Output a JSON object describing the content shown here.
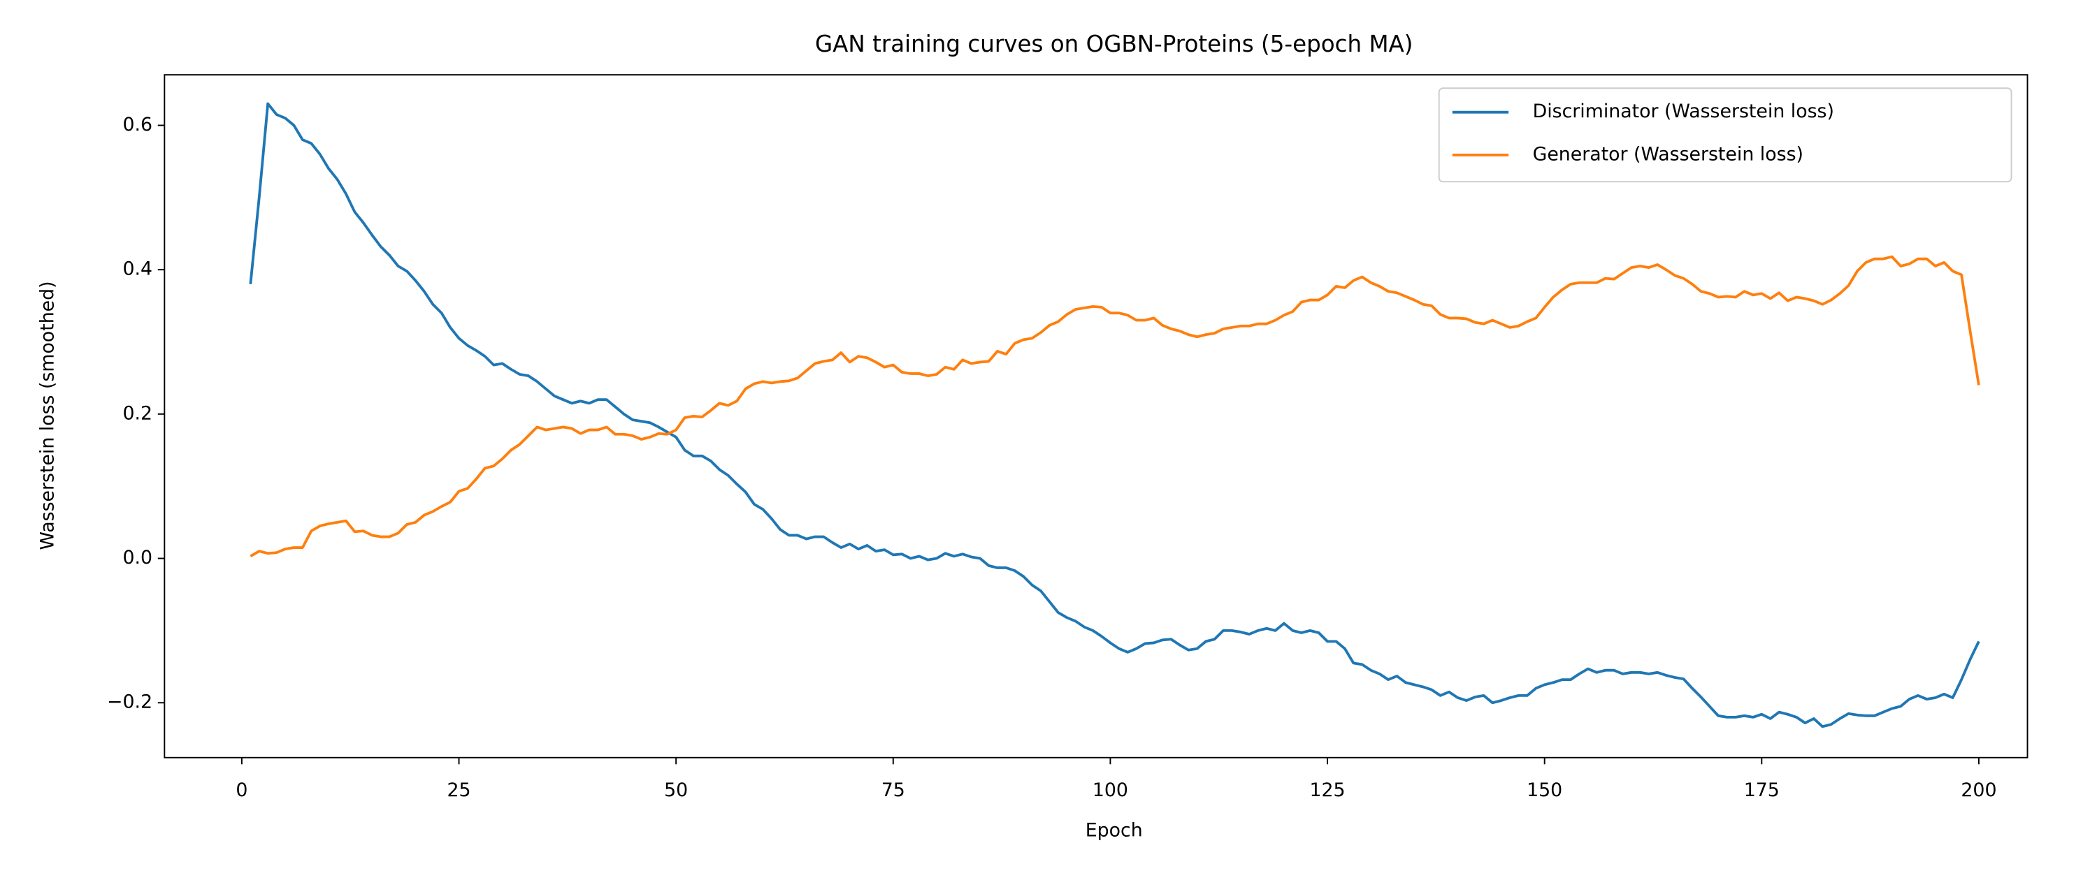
{
  "chart_data": {
    "type": "line",
    "title": "GAN training curves on OGBN-Proteins (5-epoch MA)",
    "x_label": "Epoch",
    "y_label": "Wasserstein loss (smoothed)",
    "x": [
      1,
      2,
      3,
      4,
      5,
      6,
      7,
      8,
      9,
      10,
      11,
      12,
      13,
      14,
      15,
      16,
      17,
      18,
      19,
      20,
      21,
      22,
      23,
      24,
      25,
      26,
      27,
      28,
      29,
      30,
      31,
      32,
      33,
      34,
      35,
      36,
      37,
      38,
      39,
      40,
      41,
      42,
      43,
      44,
      45,
      46,
      47,
      48,
      49,
      50,
      51,
      52,
      53,
      54,
      55,
      56,
      57,
      58,
      59,
      60,
      61,
      62,
      63,
      64,
      65,
      66,
      67,
      68,
      69,
      70,
      71,
      72,
      73,
      74,
      75,
      76,
      77,
      78,
      79,
      80,
      81,
      82,
      83,
      84,
      85,
      86,
      87,
      88,
      89,
      90,
      91,
      92,
      93,
      94,
      95,
      96,
      97,
      98,
      99,
      100,
      101,
      102,
      103,
      104,
      105,
      106,
      107,
      108,
      109,
      110,
      111,
      112,
      113,
      114,
      115,
      116,
      117,
      118,
      119,
      120,
      121,
      122,
      123,
      124,
      125,
      126,
      127,
      128,
      129,
      130,
      131,
      132,
      133,
      134,
      135,
      136,
      137,
      138,
      139,
      140,
      141,
      142,
      143,
      144,
      145,
      146,
      147,
      148,
      149,
      150,
      151,
      152,
      153,
      154,
      155,
      156,
      157,
      158,
      159,
      160,
      161,
      162,
      163,
      164,
      165,
      166,
      167,
      168,
      169,
      170,
      171,
      172,
      173,
      174,
      175,
      176,
      177,
      178,
      179,
      180,
      181,
      182,
      183,
      184,
      185,
      186,
      187,
      188,
      189,
      190,
      191,
      192,
      193,
      194,
      195,
      196,
      197,
      198,
      199,
      200
    ],
    "series": [
      {
        "name": "Discriminator (Wasserstein loss)",
        "color": "#1f77b4",
        "values": [
          0.38,
          0.5,
          0.63,
          0.615,
          0.61,
          0.6,
          0.58,
          0.575,
          0.56,
          0.54,
          0.525,
          0.505,
          0.48,
          0.465,
          0.448,
          0.432,
          0.42,
          0.405,
          0.398,
          0.385,
          0.37,
          0.352,
          0.34,
          0.32,
          0.305,
          0.295,
          0.288,
          0.28,
          0.268,
          0.27,
          0.262,
          0.255,
          0.253,
          0.245,
          0.235,
          0.225,
          0.22,
          0.215,
          0.218,
          0.215,
          0.22,
          0.22,
          0.21,
          0.2,
          0.192,
          0.19,
          0.188,
          0.182,
          0.175,
          0.168,
          0.15,
          0.142,
          0.142,
          0.135,
          0.123,
          0.115,
          0.103,
          0.092,
          0.075,
          0.068,
          0.055,
          0.04,
          0.032,
          0.032,
          0.027,
          0.03,
          0.03,
          0.022,
          0.015,
          0.02,
          0.013,
          0.018,
          0.01,
          0.012,
          0.005,
          0.006,
          0.0,
          0.003,
          -0.002,
          0.0,
          0.007,
          0.003,
          0.006,
          0.002,
          0.0,
          -0.01,
          -0.013,
          -0.013,
          -0.017,
          -0.025,
          -0.037,
          -0.045,
          -0.06,
          -0.075,
          -0.082,
          -0.087,
          -0.095,
          -0.1,
          -0.108,
          -0.117,
          -0.125,
          -0.13,
          -0.125,
          -0.118,
          -0.117,
          -0.113,
          -0.112,
          -0.12,
          -0.127,
          -0.125,
          -0.115,
          -0.112,
          -0.1,
          -0.1,
          -0.102,
          -0.105,
          -0.1,
          -0.097,
          -0.1,
          -0.09,
          -0.1,
          -0.103,
          -0.1,
          -0.103,
          -0.115,
          -0.115,
          -0.125,
          -0.145,
          -0.147,
          -0.155,
          -0.16,
          -0.168,
          -0.163,
          -0.172,
          -0.175,
          -0.178,
          -0.182,
          -0.19,
          -0.185,
          -0.193,
          -0.197,
          -0.192,
          -0.19,
          -0.2,
          -0.197,
          -0.193,
          -0.19,
          -0.19,
          -0.18,
          -0.175,
          -0.172,
          -0.168,
          -0.168,
          -0.16,
          -0.153,
          -0.158,
          -0.155,
          -0.155,
          -0.16,
          -0.158,
          -0.158,
          -0.16,
          -0.158,
          -0.162,
          -0.165,
          -0.167,
          -0.18,
          -0.192,
          -0.205,
          -0.218,
          -0.22,
          -0.22,
          -0.218,
          -0.22,
          -0.216,
          -0.222,
          -0.213,
          -0.216,
          -0.22,
          -0.228,
          -0.222,
          -0.233,
          -0.23,
          -0.222,
          -0.215,
          -0.217,
          -0.218,
          -0.218,
          -0.213,
          -0.208,
          -0.205,
          -0.195,
          -0.19,
          -0.195,
          -0.193,
          -0.188,
          -0.193,
          -0.168,
          -0.14,
          -0.115
        ]
      },
      {
        "name": "Generator (Wasserstein loss)",
        "color": "#ff7f0e",
        "values": [
          0.003,
          0.01,
          0.007,
          0.008,
          0.013,
          0.015,
          0.015,
          0.038,
          0.045,
          0.048,
          0.05,
          0.052,
          0.037,
          0.038,
          0.032,
          0.03,
          0.03,
          0.035,
          0.047,
          0.05,
          0.06,
          0.065,
          0.072,
          0.078,
          0.093,
          0.097,
          0.11,
          0.125,
          0.128,
          0.138,
          0.15,
          0.158,
          0.17,
          0.182,
          0.178,
          0.18,
          0.182,
          0.18,
          0.173,
          0.178,
          0.178,
          0.182,
          0.172,
          0.172,
          0.17,
          0.165,
          0.168,
          0.173,
          0.172,
          0.178,
          0.195,
          0.197,
          0.196,
          0.205,
          0.215,
          0.212,
          0.218,
          0.235,
          0.242,
          0.245,
          0.243,
          0.245,
          0.246,
          0.25,
          0.26,
          0.27,
          0.273,
          0.275,
          0.285,
          0.272,
          0.28,
          0.278,
          0.272,
          0.265,
          0.268,
          0.258,
          0.256,
          0.256,
          0.253,
          0.255,
          0.265,
          0.262,
          0.275,
          0.27,
          0.272,
          0.273,
          0.287,
          0.283,
          0.298,
          0.303,
          0.305,
          0.313,
          0.323,
          0.328,
          0.338,
          0.345,
          0.347,
          0.349,
          0.348,
          0.34,
          0.34,
          0.337,
          0.33,
          0.33,
          0.333,
          0.323,
          0.318,
          0.315,
          0.31,
          0.307,
          0.31,
          0.312,
          0.318,
          0.32,
          0.322,
          0.322,
          0.325,
          0.325,
          0.33,
          0.337,
          0.342,
          0.355,
          0.358,
          0.358,
          0.365,
          0.377,
          0.375,
          0.385,
          0.39,
          0.382,
          0.377,
          0.37,
          0.368,
          0.363,
          0.358,
          0.352,
          0.35,
          0.338,
          0.333,
          0.333,
          0.332,
          0.327,
          0.325,
          0.33,
          0.325,
          0.32,
          0.322,
          0.328,
          0.333,
          0.348,
          0.362,
          0.372,
          0.38,
          0.382,
          0.382,
          0.382,
          0.388,
          0.387,
          0.395,
          0.403,
          0.405,
          0.403,
          0.407,
          0.4,
          0.392,
          0.388,
          0.38,
          0.37,
          0.367,
          0.362,
          0.363,
          0.362,
          0.37,
          0.365,
          0.367,
          0.36,
          0.368,
          0.357,
          0.362,
          0.36,
          0.357,
          0.352,
          0.358,
          0.367,
          0.378,
          0.398,
          0.41,
          0.415,
          0.415,
          0.418,
          0.405,
          0.408,
          0.415,
          0.415,
          0.405,
          0.41,
          0.398,
          0.393,
          0.315,
          0.24
        ]
      }
    ],
    "xlim": [
      -8.9,
      205.6
    ],
    "ylim": [
      -0.276,
      0.67
    ],
    "xticks": [
      0,
      25,
      50,
      75,
      100,
      125,
      150,
      175,
      200
    ],
    "yticks": [
      {
        "value": -0.2,
        "label": "−0.2"
      },
      {
        "value": 0,
        "label": "0.0"
      },
      0.2,
      0.4,
      0.6
    ],
    "legend": "upper right"
  }
}
